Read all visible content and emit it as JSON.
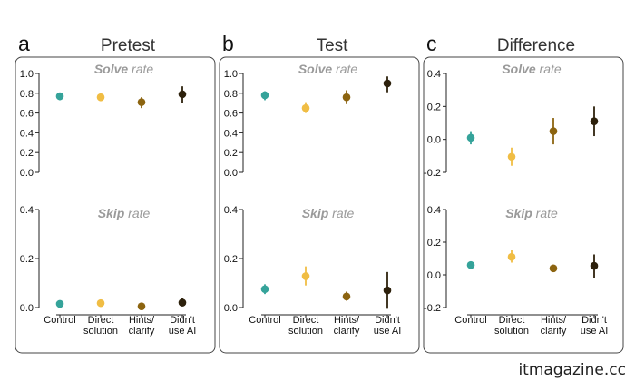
{
  "watermark": "itmagazine.cc",
  "colors": {
    "control": "#35a39a",
    "direct": "#f0bd44",
    "hints": "#8c6410",
    "noai": "#2d210c",
    "frame": "#444444"
  },
  "chart_data": [
    {
      "type": "scatter",
      "panel": "a",
      "title": "Pretest",
      "categories": [
        "Control",
        "Direct solution",
        "Hints/ clarify",
        "Didn't use AI"
      ],
      "subplots": [
        {
          "metric": "solve",
          "label_bold": "Solve",
          "label_rest": " rate",
          "ylim": [
            0,
            1.0
          ],
          "yticks": [
            "0.0",
            "0.2",
            "0.4",
            "0.6",
            "0.8",
            "1.0"
          ],
          "ytick_values": [
            0,
            0.2,
            0.4,
            0.6,
            0.8,
            1.0
          ],
          "values": [
            0.77,
            0.76,
            0.71,
            0.79
          ],
          "err_low": [
            0.73,
            0.72,
            0.65,
            0.7
          ],
          "err_high": [
            0.8,
            0.79,
            0.76,
            0.87
          ]
        },
        {
          "metric": "skip",
          "label_bold": "Skip",
          "label_rest": " rate",
          "ylim": [
            0,
            0.4
          ],
          "yticks": [
            "0.0",
            "0.2",
            "0.4"
          ],
          "ytick_values": [
            0,
            0.2,
            0.4
          ],
          "values": [
            0.015,
            0.018,
            0.005,
            0.02
          ],
          "err_low": [
            0.008,
            0.008,
            0.0,
            0.005
          ],
          "err_high": [
            0.022,
            0.028,
            0.012,
            0.04
          ]
        }
      ]
    },
    {
      "type": "scatter",
      "panel": "b",
      "title": "Test",
      "categories": [
        "Control",
        "Direct solution",
        "Hints/ clarify",
        "Didn't use AI"
      ],
      "subplots": [
        {
          "metric": "solve",
          "label_bold": "Solve",
          "label_rest": " rate",
          "ylim": [
            0,
            1.0
          ],
          "yticks": [
            "0.0",
            "0.2",
            "0.4",
            "0.6",
            "0.8",
            "1.0"
          ],
          "ytick_values": [
            0,
            0.2,
            0.4,
            0.6,
            0.8,
            1.0
          ],
          "values": [
            0.78,
            0.65,
            0.76,
            0.9
          ],
          "err_low": [
            0.73,
            0.6,
            0.69,
            0.81
          ],
          "err_high": [
            0.82,
            0.71,
            0.83,
            0.97
          ]
        },
        {
          "metric": "skip",
          "label_bold": "Skip",
          "label_rest": " rate",
          "ylim": [
            0,
            0.4
          ],
          "yticks": [
            "0.0",
            "0.2",
            "0.4"
          ],
          "ytick_values": [
            0,
            0.2,
            0.4
          ],
          "values": [
            0.075,
            0.128,
            0.045,
            0.07
          ],
          "err_low": [
            0.055,
            0.09,
            0.028,
            -0.005
          ],
          "err_high": [
            0.095,
            0.168,
            0.065,
            0.145
          ]
        }
      ]
    },
    {
      "type": "scatter",
      "panel": "c",
      "title": "Difference",
      "categories": [
        "Control",
        "Direct solution",
        "Hints/ clarify",
        "Didn't use AI"
      ],
      "subplots": [
        {
          "metric": "solve",
          "label_bold": "Solve",
          "label_rest": " rate",
          "ylim": [
            -0.2,
            0.4
          ],
          "yticks": [
            "-0.2",
            "0.0",
            "0.2",
            "0.4"
          ],
          "ytick_values": [
            -0.2,
            0,
            0.2,
            0.4
          ],
          "values": [
            0.01,
            -0.105,
            0.05,
            0.11
          ],
          "err_low": [
            -0.03,
            -0.16,
            -0.03,
            0.02
          ],
          "err_high": [
            0.05,
            -0.05,
            0.13,
            0.2
          ]
        },
        {
          "metric": "skip",
          "label_bold": "Skip",
          "label_rest": " rate",
          "ylim": [
            -0.2,
            0.4
          ],
          "yticks": [
            "-0.2",
            "0.0",
            "0.2",
            "0.4"
          ],
          "ytick_values": [
            -0.2,
            0,
            0.2,
            0.4
          ],
          "values": [
            0.06,
            0.11,
            0.04,
            0.055
          ],
          "err_low": [
            0.04,
            0.075,
            0.02,
            -0.02
          ],
          "err_high": [
            0.08,
            0.15,
            0.06,
            0.125
          ]
        }
      ]
    }
  ]
}
